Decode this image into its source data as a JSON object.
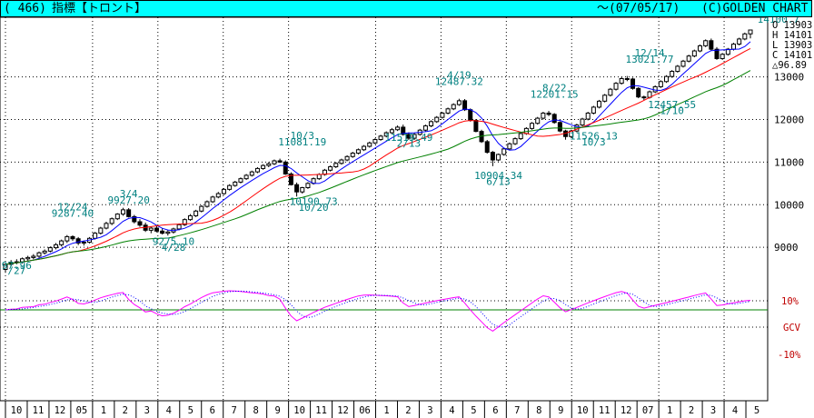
{
  "header": {
    "code": "( 466)",
    "name": "指標【トロント】",
    "range": "～(07/05/17)",
    "brand": "(C)GOLDEN CHART"
  },
  "ohlc": {
    "open": "O 13903",
    "high": "H 14101",
    "low": "L 13903",
    "close": "C 14101",
    "change": "△96.89"
  },
  "colors": {
    "titlebar": "#00ffff",
    "ma_short": "#0000ff",
    "ma_mid": "#ff0000",
    "ma_long": "#008000",
    "osc_fast": "#ff00ff",
    "osc_slow": "#0000ff",
    "annotation": "#008080",
    "osc_label": "#c00000"
  },
  "chart_data": {
    "type": "candlestick",
    "y_ticks": [
      "13000",
      "12000",
      "11000",
      "10000",
      "9000"
    ],
    "ylim": [
      8000,
      14400
    ],
    "month_labels": [
      "10",
      "11",
      "12",
      "05",
      "1",
      "2",
      "3",
      "4",
      "5",
      "6",
      "7",
      "8",
      "9",
      "10",
      "11",
      "12",
      "06",
      "1",
      "2",
      "3",
      "4",
      "5",
      "6",
      "7",
      "8",
      "9",
      "10",
      "11",
      "12",
      "07",
      "1",
      "2",
      "3",
      "4",
      "5"
    ],
    "annotations": [
      {
        "text": "97.96",
        "x": 2,
        "y": 8490
      },
      {
        "text": "/27",
        "x": 2,
        "y": 8370
      },
      {
        "text": "12/24",
        "x": 12,
        "y": 9870
      },
      {
        "text": "9287.40",
        "x": 12,
        "y": 9720
      },
      {
        "text": "3/4",
        "x": 22,
        "y": 10180
      },
      {
        "text": "9927.20",
        "x": 22,
        "y": 10030
      },
      {
        "text": "9275.10",
        "x": 30,
        "y": 9060
      },
      {
        "text": "4/28",
        "x": 30,
        "y": 8920
      },
      {
        "text": "10/3",
        "x": 53,
        "y": 11540
      },
      {
        "text": "11081.19",
        "x": 53,
        "y": 11390
      },
      {
        "text": "10190.73",
        "x": 55,
        "y": 10000
      },
      {
        "text": "10/20",
        "x": 55,
        "y": 9860
      },
      {
        "text": "11519.49",
        "x": 72,
        "y": 11500
      },
      {
        "text": "2/13",
        "x": 72,
        "y": 11360
      },
      {
        "text": "4/19",
        "x": 81,
        "y": 12960
      },
      {
        "text": "12487.32",
        "x": 81,
        "y": 12810
      },
      {
        "text": "10904.34",
        "x": 88,
        "y": 10600
      },
      {
        "text": "6/13",
        "x": 88,
        "y": 10460
      },
      {
        "text": "8/22",
        "x": 98,
        "y": 12660
      },
      {
        "text": "12201.15",
        "x": 98,
        "y": 12510
      },
      {
        "text": "11526.13",
        "x": 105,
        "y": 11530
      },
      {
        "text": "10/3",
        "x": 105,
        "y": 11390
      },
      {
        "text": "12/14",
        "x": 115,
        "y": 13480
      },
      {
        "text": "13021.77",
        "x": 115,
        "y": 13330
      },
      {
        "text": "12457.55",
        "x": 119,
        "y": 12270
      },
      {
        "text": "1/10",
        "x": 119,
        "y": 12130
      },
      {
        "text": "5/17",
        "x": 138,
        "y": 14420
      },
      {
        "text": "14100.7",
        "x": 138,
        "y": 14270
      }
    ],
    "candles": [
      [
        8480,
        8620,
        8400,
        8600
      ],
      [
        8600,
        8700,
        8550,
        8640
      ],
      [
        8640,
        8720,
        8600,
        8660
      ],
      [
        8660,
        8760,
        8620,
        8730
      ],
      [
        8730,
        8800,
        8690,
        8760
      ],
      [
        8760,
        8840,
        8720,
        8790
      ],
      [
        8790,
        8900,
        8750,
        8870
      ],
      [
        8870,
        8950,
        8830,
        8910
      ],
      [
        8910,
        9020,
        8880,
        8990
      ],
      [
        8990,
        9100,
        8950,
        9060
      ],
      [
        9060,
        9180,
        9020,
        9150
      ],
      [
        9150,
        9287,
        9100,
        9250
      ],
      [
        9250,
        9280,
        9150,
        9200
      ],
      [
        9200,
        9240,
        9050,
        9100
      ],
      [
        9100,
        9160,
        9040,
        9120
      ],
      [
        9120,
        9240,
        9090,
        9210
      ],
      [
        9210,
        9360,
        9180,
        9330
      ],
      [
        9330,
        9480,
        9300,
        9450
      ],
      [
        9450,
        9600,
        9420,
        9560
      ],
      [
        9560,
        9700,
        9520,
        9670
      ],
      [
        9670,
        9800,
        9640,
        9780
      ],
      [
        9780,
        9927,
        9740,
        9880
      ],
      [
        9880,
        9920,
        9700,
        9720
      ],
      [
        9720,
        9760,
        9560,
        9600
      ],
      [
        9600,
        9660,
        9480,
        9520
      ],
      [
        9520,
        9580,
        9360,
        9400
      ],
      [
        9400,
        9480,
        9330,
        9450
      ],
      [
        9450,
        9520,
        9350,
        9380
      ],
      [
        9380,
        9440,
        9300,
        9330
      ],
      [
        9330,
        9400,
        9275,
        9360
      ],
      [
        9360,
        9460,
        9320,
        9430
      ],
      [
        9430,
        9560,
        9400,
        9530
      ],
      [
        9530,
        9680,
        9500,
        9650
      ],
      [
        9650,
        9780,
        9620,
        9740
      ],
      [
        9740,
        9880,
        9710,
        9850
      ],
      [
        9850,
        9990,
        9820,
        9960
      ],
      [
        9960,
        10100,
        9930,
        10070
      ],
      [
        10070,
        10210,
        10040,
        10180
      ],
      [
        10180,
        10300,
        10150,
        10260
      ],
      [
        10260,
        10390,
        10230,
        10360
      ],
      [
        10360,
        10480,
        10330,
        10450
      ],
      [
        10450,
        10560,
        10420,
        10530
      ],
      [
        10530,
        10640,
        10500,
        10610
      ],
      [
        10610,
        10720,
        10580,
        10690
      ],
      [
        10690,
        10800,
        10660,
        10770
      ],
      [
        10770,
        10880,
        10740,
        10850
      ],
      [
        10850,
        10950,
        10820,
        10920
      ],
      [
        10920,
        11000,
        10880,
        10960
      ],
      [
        10960,
        11060,
        10930,
        11030
      ],
      [
        11030,
        11081,
        10980,
        11000
      ],
      [
        11000,
        11040,
        10700,
        10720
      ],
      [
        10720,
        10760,
        10450,
        10470
      ],
      [
        10470,
        10520,
        10191,
        10300
      ],
      [
        10300,
        10420,
        10260,
        10400
      ],
      [
        10400,
        10530,
        10370,
        10500
      ],
      [
        10500,
        10640,
        10470,
        10610
      ],
      [
        10610,
        10740,
        10580,
        10710
      ],
      [
        10710,
        10840,
        10680,
        10810
      ],
      [
        10810,
        10920,
        10780,
        10890
      ],
      [
        10890,
        11000,
        10860,
        10970
      ],
      [
        10970,
        11080,
        10940,
        11050
      ],
      [
        11050,
        11160,
        11020,
        11130
      ],
      [
        11130,
        11240,
        11100,
        11210
      ],
      [
        11210,
        11320,
        11180,
        11290
      ],
      [
        11290,
        11400,
        11260,
        11370
      ],
      [
        11370,
        11480,
        11340,
        11450
      ],
      [
        11450,
        11560,
        11420,
        11530
      ],
      [
        11530,
        11640,
        11500,
        11610
      ],
      [
        11610,
        11720,
        11580,
        11690
      ],
      [
        11690,
        11800,
        11660,
        11760
      ],
      [
        11760,
        11860,
        11730,
        11820
      ],
      [
        11820,
        11880,
        11620,
        11650
      ],
      [
        11650,
        11700,
        11520,
        11560
      ],
      [
        11560,
        11680,
        11520,
        11650
      ],
      [
        11650,
        11780,
        11620,
        11750
      ],
      [
        11750,
        11880,
        11720,
        11850
      ],
      [
        11850,
        11980,
        11820,
        11950
      ],
      [
        11950,
        12080,
        11920,
        12050
      ],
      [
        12050,
        12180,
        12020,
        12150
      ],
      [
        12150,
        12280,
        12120,
        12250
      ],
      [
        12250,
        12380,
        12220,
        12350
      ],
      [
        12350,
        12487,
        12320,
        12440
      ],
      [
        12440,
        12480,
        12200,
        12230
      ],
      [
        12230,
        12260,
        11950,
        11980
      ],
      [
        11980,
        12010,
        11700,
        11720
      ],
      [
        11720,
        11760,
        11450,
        11480
      ],
      [
        11480,
        11520,
        11200,
        11230
      ],
      [
        11230,
        11260,
        10904,
        11050
      ],
      [
        11050,
        11200,
        11020,
        11180
      ],
      [
        11180,
        11340,
        11150,
        11310
      ],
      [
        11310,
        11460,
        11280,
        11430
      ],
      [
        11430,
        11580,
        11400,
        11550
      ],
      [
        11550,
        11700,
        11520,
        11670
      ],
      [
        11670,
        11820,
        11640,
        11790
      ],
      [
        11790,
        11940,
        11760,
        11910
      ],
      [
        11910,
        12060,
        11880,
        12030
      ],
      [
        12030,
        12180,
        12000,
        12150
      ],
      [
        12150,
        12201,
        12080,
        12120
      ],
      [
        12120,
        12150,
        11900,
        11930
      ],
      [
        11930,
        11960,
        11700,
        11730
      ],
      [
        11730,
        11760,
        11526,
        11600
      ],
      [
        11600,
        11760,
        11570,
        11730
      ],
      [
        11730,
        11900,
        11700,
        11870
      ],
      [
        11870,
        12040,
        11840,
        12010
      ],
      [
        12010,
        12180,
        11980,
        12150
      ],
      [
        12150,
        12320,
        12120,
        12290
      ],
      [
        12290,
        12460,
        12260,
        12430
      ],
      [
        12430,
        12600,
        12400,
        12570
      ],
      [
        12570,
        12740,
        12540,
        12710
      ],
      [
        12710,
        12880,
        12680,
        12850
      ],
      [
        12850,
        13000,
        12820,
        12960
      ],
      [
        12960,
        13021,
        12900,
        12950
      ],
      [
        12950,
        12980,
        12700,
        12730
      ],
      [
        12730,
        12760,
        12500,
        12530
      ],
      [
        12530,
        12560,
        12458,
        12520
      ],
      [
        12520,
        12680,
        12490,
        12650
      ],
      [
        12650,
        12800,
        12620,
        12770
      ],
      [
        12770,
        12920,
        12740,
        12890
      ],
      [
        12890,
        13040,
        12860,
        13010
      ],
      [
        13010,
        13160,
        12980,
        13130
      ],
      [
        13130,
        13280,
        13100,
        13250
      ],
      [
        13250,
        13400,
        13220,
        13370
      ],
      [
        13370,
        13520,
        13340,
        13490
      ],
      [
        13490,
        13640,
        13460,
        13610
      ],
      [
        13610,
        13760,
        13580,
        13730
      ],
      [
        13730,
        13880,
        13700,
        13850
      ],
      [
        13850,
        13900,
        13620,
        13650
      ],
      [
        13650,
        13700,
        13400,
        13430
      ],
      [
        13430,
        13560,
        13400,
        13530
      ],
      [
        13530,
        13680,
        13500,
        13650
      ],
      [
        13650,
        13800,
        13620,
        13770
      ],
      [
        13770,
        13920,
        13740,
        13890
      ],
      [
        13890,
        14040,
        13860,
        14010
      ],
      [
        14010,
        14101,
        13903,
        14101
      ]
    ]
  }
}
